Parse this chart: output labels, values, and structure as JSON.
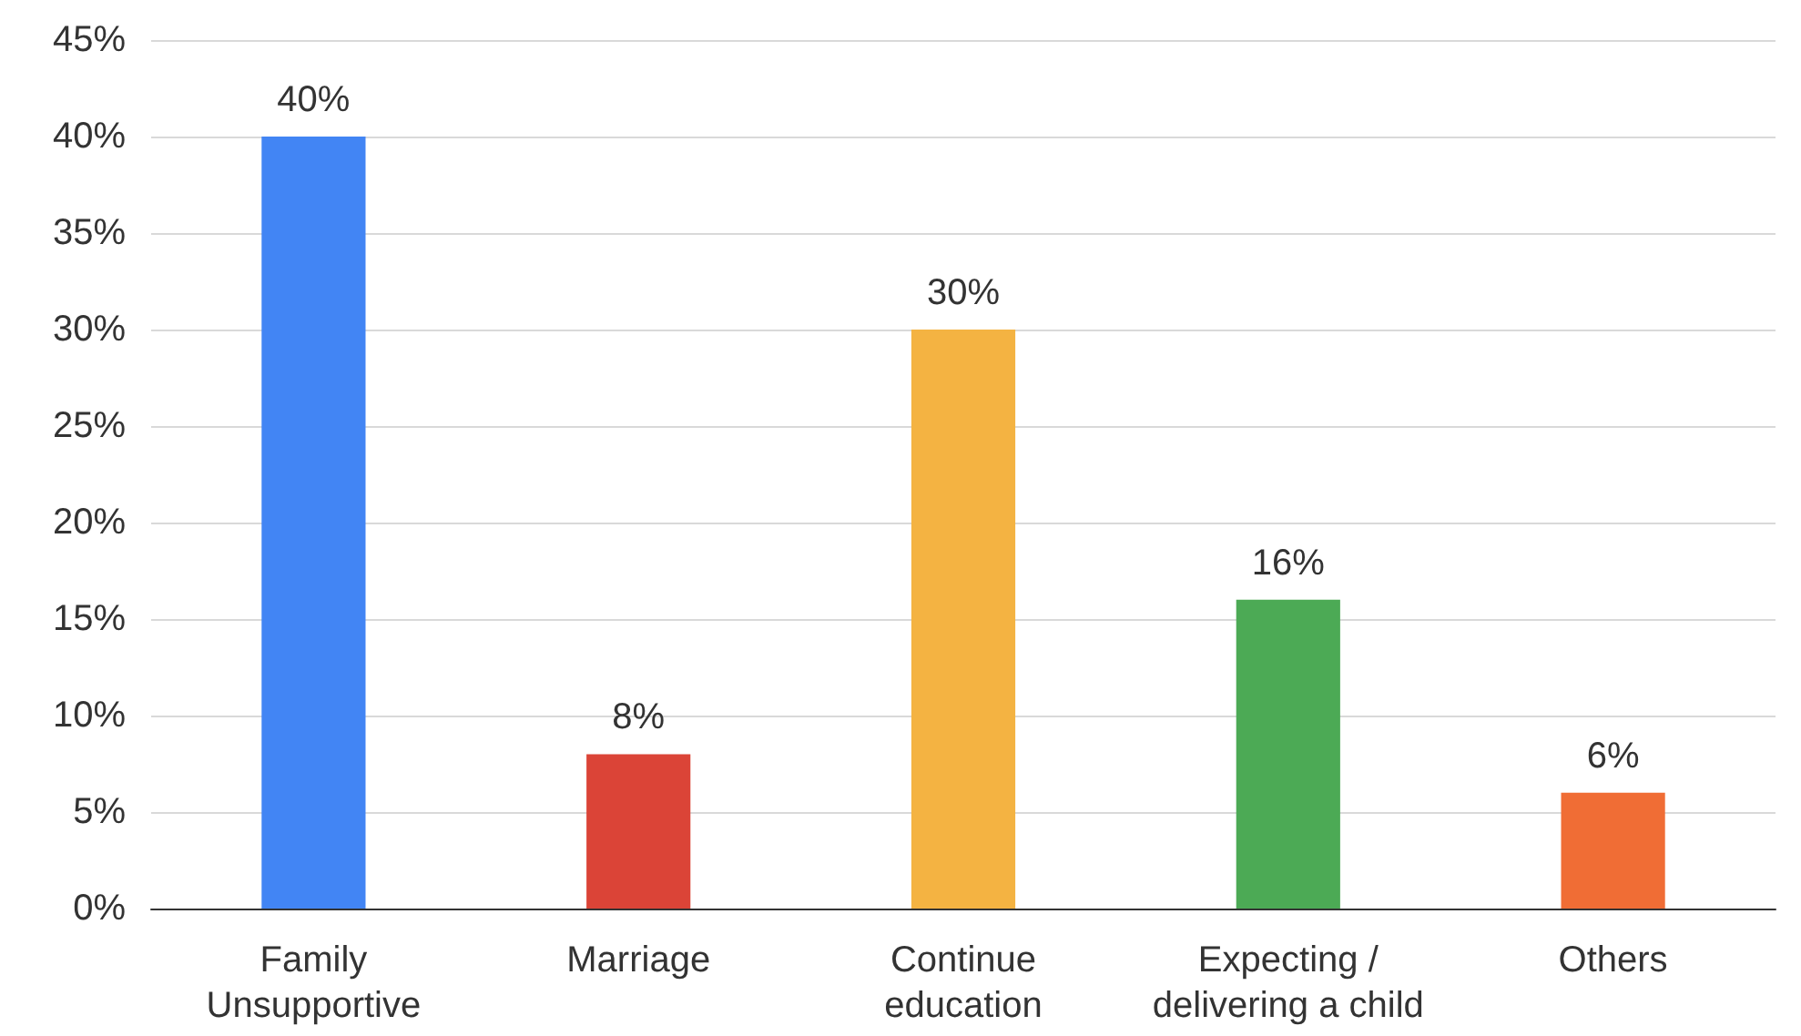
{
  "chart_data": {
    "type": "bar",
    "categories": [
      "Family\nUnsupportive",
      "Marriage",
      "Continue\neducation",
      "Expecting /\ndelivering a child",
      "Others"
    ],
    "values": [
      40,
      8,
      30,
      16,
      6
    ],
    "colors": [
      "#4285f4",
      "#db4437",
      "#f4b342",
      "#4caa55",
      "#f06d35"
    ],
    "value_labels": [
      "40%",
      "8%",
      "30%",
      "16%",
      "6%"
    ],
    "ylim": [
      0,
      45
    ],
    "yticks": [
      {
        "value": 0,
        "label": "0%"
      },
      {
        "value": 5,
        "label": "5%"
      },
      {
        "value": 10,
        "label": "10%"
      },
      {
        "value": 15,
        "label": "15%"
      },
      {
        "value": 20,
        "label": "20%"
      },
      {
        "value": 25,
        "label": "25%"
      },
      {
        "value": 30,
        "label": "30%"
      },
      {
        "value": 35,
        "label": "35%"
      },
      {
        "value": 40,
        "label": "40%"
      },
      {
        "value": 45,
        "label": "45%"
      }
    ],
    "grid": "y"
  }
}
